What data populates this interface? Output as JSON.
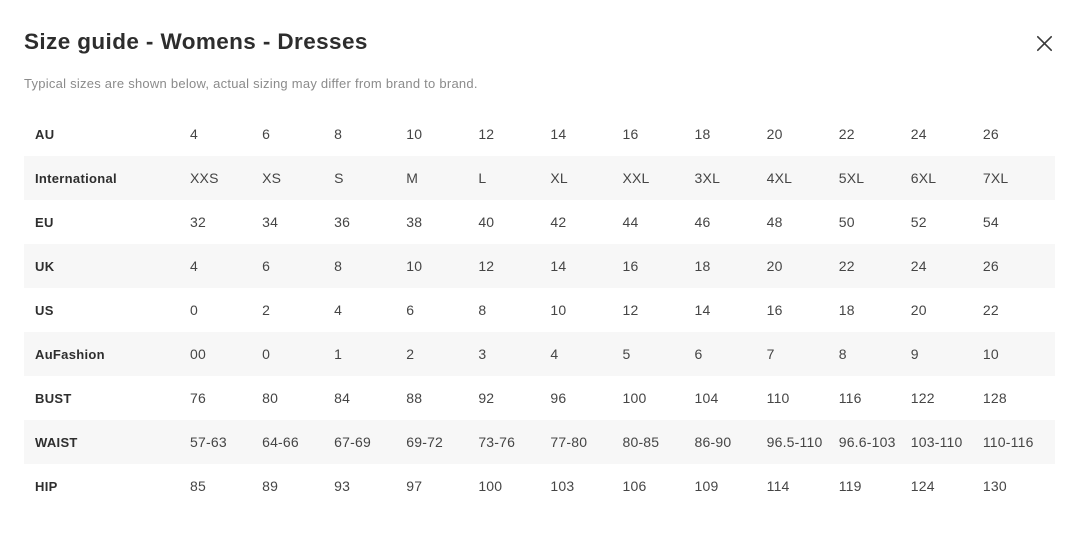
{
  "header": {
    "title": "Size guide - Womens - Dresses"
  },
  "subtitle": "Typical sizes are shown below, actual sizing may differ from brand to brand.",
  "colors": {
    "row_alt": "#f7f7f7",
    "title_text": "#2d2d2d",
    "subtitle_text": "#8b8b8b",
    "label_text": "#2e2e2e",
    "cell_text": "#454545",
    "icon_stroke": "#3a3a3a"
  },
  "icons": {
    "close": "close-icon"
  },
  "table": {
    "rows": [
      {
        "label": "AU",
        "values": [
          "4",
          "6",
          "8",
          "10",
          "12",
          "14",
          "16",
          "18",
          "20",
          "22",
          "24",
          "26"
        ]
      },
      {
        "label": "International",
        "values": [
          "XXS",
          "XS",
          "S",
          "M",
          "L",
          "XL",
          "XXL",
          "3XL",
          "4XL",
          "5XL",
          "6XL",
          "7XL"
        ]
      },
      {
        "label": "EU",
        "values": [
          "32",
          "34",
          "36",
          "38",
          "40",
          "42",
          "44",
          "46",
          "48",
          "50",
          "52",
          "54"
        ]
      },
      {
        "label": "UK",
        "values": [
          "4",
          "6",
          "8",
          "10",
          "12",
          "14",
          "16",
          "18",
          "20",
          "22",
          "24",
          "26"
        ]
      },
      {
        "label": "US",
        "values": [
          "0",
          "2",
          "4",
          "6",
          "8",
          "10",
          "12",
          "14",
          "16",
          "18",
          "20",
          "22"
        ]
      },
      {
        "label": "AuFashion",
        "values": [
          "00",
          "0",
          "1",
          "2",
          "3",
          "4",
          "5",
          "6",
          "7",
          "8",
          "9",
          "10"
        ]
      },
      {
        "label": "BUST",
        "values": [
          "76",
          "80",
          "84",
          "88",
          "92",
          "96",
          "100",
          "104",
          "110",
          "116",
          "122",
          "128"
        ]
      },
      {
        "label": "WAIST",
        "values": [
          "57-63",
          "64-66",
          "67-69",
          "69-72",
          "73-76",
          "77-80",
          "80-85",
          "86-90",
          "96.5-110",
          "96.6-103",
          "103-110",
          "110-116"
        ]
      },
      {
        "label": "HIP",
        "values": [
          "85",
          "89",
          "93",
          "97",
          "100",
          "103",
          "106",
          "109",
          "114",
          "119",
          "124",
          "130"
        ]
      }
    ]
  }
}
